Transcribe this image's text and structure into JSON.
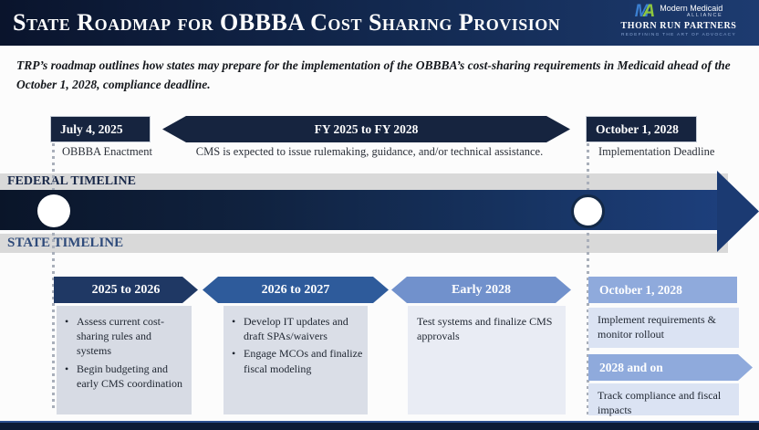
{
  "header": {
    "title": "State Roadmap for OBBBA Cost Sharing Provision",
    "logo": {
      "monogram_m": "M",
      "monogram_a": "A",
      "brand_line1": "Modern Medicaid",
      "brand_line2": "ALLIANCE",
      "partner": "THORN RUN PARTNERS",
      "partner_tagline": "REDEFINING THE ART OF ADVOCACY"
    }
  },
  "intro": "TRP’s roadmap outlines how states may prepare for the implementation of the OBBBA’s cost-sharing requirements in Medicaid ahead of the October 1, 2028, compliance deadline.",
  "federal_timeline": {
    "label": "FEDERAL TIMELINE",
    "milestone_start": {
      "date": "July 4, 2025",
      "caption": "OBBBA Enactment"
    },
    "span": {
      "range": "FY 2025 to FY 2028",
      "caption": "CMS is expected to issue rulemaking, guidance, and/or technical assistance."
    },
    "milestone_end": {
      "date": "October 1, 2028",
      "caption": "Implementation Deadline"
    }
  },
  "state_timeline": {
    "label": "STATE TIMELINE",
    "phases": [
      {
        "period": "2025 to 2026",
        "items": [
          "Assess current cost-sharing rules and systems",
          "Begin budgeting and early CMS coordination"
        ]
      },
      {
        "period": "2026 to 2027",
        "items": [
          "Develop IT updates and draft SPAs/waivers",
          "Engage MCOs and finalize fiscal modeling"
        ]
      },
      {
        "period": "Early 2028",
        "items": [
          "Test systems and finalize CMS approvals"
        ]
      },
      {
        "period": "October 1, 2028",
        "items": [
          "Implement requirements & monitor rollout"
        ]
      },
      {
        "period": "2028 and on",
        "items": [
          "Track compliance and fiscal impacts"
        ]
      }
    ]
  },
  "colors": {
    "header_navy": "#132a52",
    "milestone_navy": "#16243f",
    "chevron_dark": "#1f3864",
    "chevron_mid": "#2e5b9b",
    "chevron_light": "#7191cc",
    "periwinkle": "#8faadc",
    "phase_box_gray": "#d7dbe4",
    "phase_box_lighter": "#e9ecf4",
    "right_box": "#dbe3f3",
    "band_gray": "#d9d9d9",
    "logo_blue": "#3b7fd0",
    "logo_green": "#8dc63f"
  }
}
